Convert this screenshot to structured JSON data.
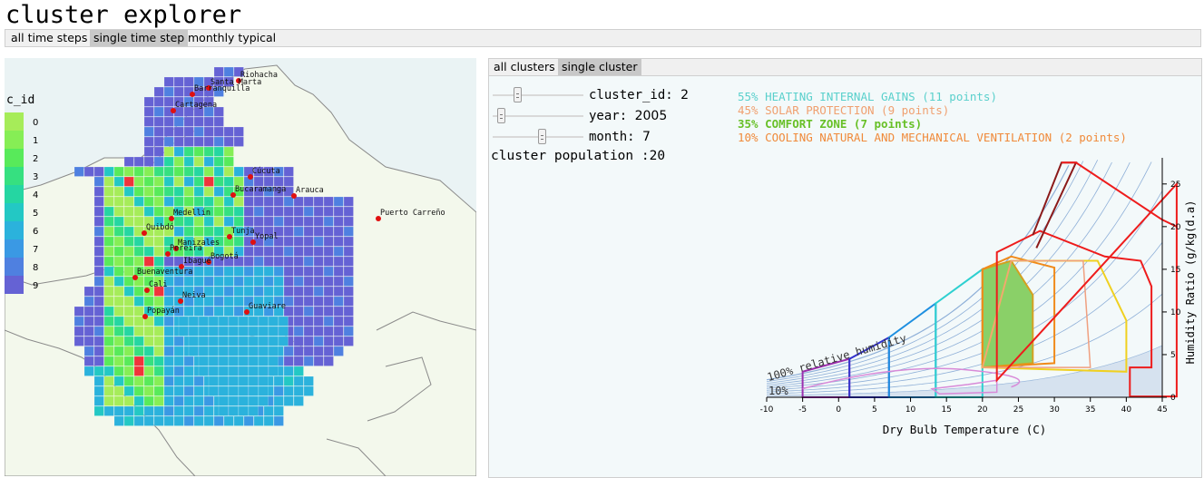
{
  "app": {
    "title": "cluster explorer"
  },
  "top_tabs": [
    {
      "label": "all time steps",
      "active": false
    },
    {
      "label": "single time step",
      "active": true
    },
    {
      "label": "monthly typical",
      "active": false
    }
  ],
  "map": {
    "legend_title": "c_id",
    "legend": [
      {
        "value": "0",
        "color": "#a6ec59"
      },
      {
        "value": "1",
        "color": "#86ee55"
      },
      {
        "value": "2",
        "color": "#58ea5a"
      },
      {
        "value": "3",
        "color": "#36e080"
      },
      {
        "value": "4",
        "color": "#25d6a2"
      },
      {
        "value": "5",
        "color": "#23c8c4"
      },
      {
        "value": "6",
        "color": "#2bb2dc"
      },
      {
        "value": "7",
        "color": "#3a99e4"
      },
      {
        "value": "8",
        "color": "#4f80e0"
      },
      {
        "value": "9",
        "color": "#6562d4"
      }
    ],
    "highlight_color": "#f0343a",
    "cities": [
      "Riohacha",
      "Santa Marta",
      "Barranquilla",
      "Cartagena",
      "Cúcuta",
      "Bucaramanga",
      "Arauca",
      "Puerto Carreño",
      "Medellín",
      "Quibdó",
      "Tunja",
      "Yopal",
      "Manizales",
      "Pereira",
      "Bogotá",
      "Ibagué",
      "Buenaventura",
      "Cali",
      "Neiva",
      "Popayán",
      "Guaviare"
    ]
  },
  "right_tabs": [
    {
      "label": "all clusters",
      "active": false
    },
    {
      "label": "single cluster",
      "active": true
    }
  ],
  "controls": {
    "cluster_id": {
      "label": "cluster_id:",
      "value": "2",
      "fraction": 0.25
    },
    "year": {
      "label": "year:",
      "value": "2005",
      "fraction": 0.05
    },
    "month": {
      "label": "month:",
      "value": "7",
      "fraction": 0.55
    }
  },
  "population": "cluster population :20",
  "strategies": [
    {
      "text": "55% HEATING INTERNAL GAINS (11 points)",
      "color": "#5ad0cc",
      "bold": false
    },
    {
      "text": "45% SOLAR PROTECTION (9 points)",
      "color": "#f0a070",
      "bold": false
    },
    {
      "text": "35% COMFORT ZONE (7 points)",
      "color": "#68c028",
      "bold": true
    },
    {
      "text": "10% COOLING NATURAL AND MECHANICAL VENTILATION (2 points)",
      "color": "#f08a3a",
      "bold": false
    }
  ],
  "psychrometric": {
    "xlabel": "Dry Bulb Temperature (C)",
    "ylabel": "Humidity Ratio (g/kg(d.a)",
    "xticks": [
      "-10",
      "-5",
      "0",
      "5",
      "10",
      "15",
      "20",
      "25",
      "30",
      "35",
      "40",
      "45"
    ],
    "yticks": [
      "0",
      "5",
      "10",
      "15",
      "20",
      "25"
    ],
    "xlim": [
      -10,
      45
    ],
    "ylim": [
      0,
      27
    ],
    "rh_label_top": "100% relative humidity",
    "rh_label_bottom": "10%"
  },
  "colors": {
    "heating_passive": "#9b2fae",
    "heating_active": "#3333cc",
    "internal_gains": "#1e8fe0",
    "passive_solar": "#2ed0d0",
    "comfort_fill": "#8ad068",
    "comfort_stroke": "#d4a020",
    "high_mass": "#f08a1a",
    "evap_cooling": "#f0d020",
    "dehumid": "#d88ad8",
    "ac": "#ee1c1c",
    "dark_red": "#8b1a1a"
  }
}
